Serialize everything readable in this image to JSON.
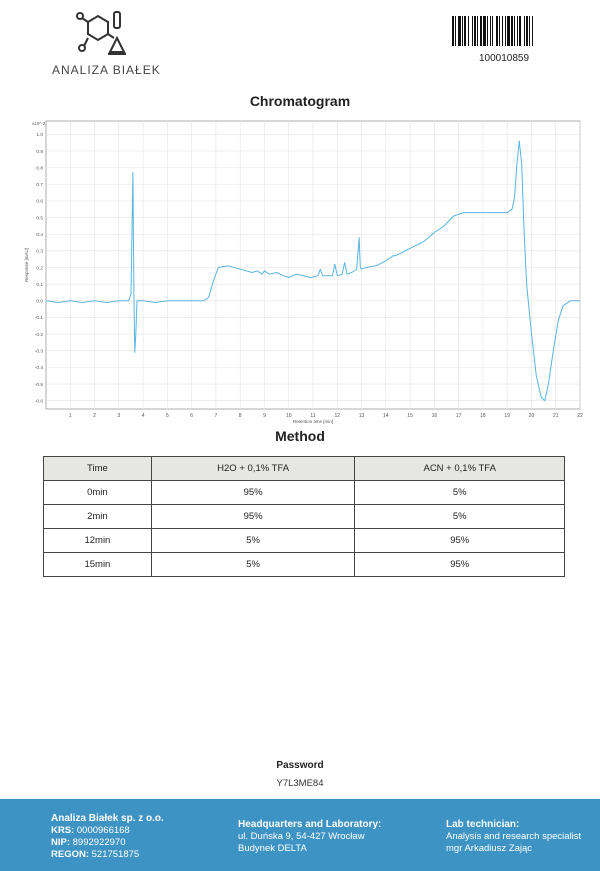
{
  "header": {
    "logo_text": "ANALIZA BIAŁEK",
    "barcode_number": "100010859"
  },
  "chromatogram": {
    "title": "Chromatogram"
  },
  "chart_data": {
    "type": "line",
    "y_scale_note": "x10^-2",
    "xlabel": "Retention time [min]",
    "ylabel": "Response [mAU]",
    "xlim": [
      0,
      22
    ],
    "ylim": [
      -0.65,
      1.08
    ],
    "x_ticks": [
      1,
      2,
      3,
      4,
      5,
      6,
      7,
      8,
      9,
      10,
      11,
      12,
      13,
      14,
      15,
      16,
      17,
      18,
      19,
      20,
      21,
      22
    ],
    "y_ticks": [
      -0.6,
      -0.5,
      -0.4,
      -0.3,
      -0.2,
      -0.1,
      0,
      0.1,
      0.2,
      0.3,
      0.4,
      0.5,
      0.6,
      0.7,
      0.8,
      0.9,
      1.0
    ],
    "grid": true,
    "series": [
      {
        "color": "#5ab4e0",
        "x": [
          0,
          0.5,
          1,
          1.5,
          2,
          2.5,
          3,
          3.4,
          3.5,
          3.58,
          3.62,
          3.66,
          3.7,
          3.75,
          3.8,
          4,
          4.5,
          5,
          5.5,
          6,
          6.5,
          6.7,
          6.9,
          7.1,
          7.5,
          8,
          8.5,
          8.7,
          8.9,
          9,
          9.2,
          9.5,
          9.8,
          10,
          10.3,
          10.6,
          10.9,
          11.2,
          11.3,
          11.4,
          11.6,
          11.8,
          11.9,
          12.0,
          12.2,
          12.3,
          12.4,
          12.6,
          12.8,
          12.9,
          12.95,
          13.0,
          13.2,
          13.6,
          14.0,
          14.2,
          14.3,
          14.4,
          14.8,
          15.2,
          15.6,
          16.0,
          16.4,
          16.8,
          17.2,
          17.6,
          18,
          18.5,
          19.0,
          19.2,
          19.3,
          19.4,
          19.5,
          19.6,
          19.7,
          19.8,
          20.0,
          20.2,
          20.4,
          20.55,
          20.7,
          20.9,
          21.1,
          21.3,
          21.6,
          22
        ],
        "y": [
          0.0,
          -0.01,
          0.0,
          -0.01,
          0.0,
          -0.01,
          0.0,
          0.0,
          0.04,
          0.77,
          0.04,
          -0.31,
          -0.2,
          0.0,
          0.0,
          0.0,
          -0.01,
          0.0,
          0.0,
          0.0,
          0.0,
          0.02,
          0.12,
          0.2,
          0.21,
          0.19,
          0.17,
          0.18,
          0.16,
          0.18,
          0.16,
          0.17,
          0.15,
          0.14,
          0.16,
          0.15,
          0.14,
          0.15,
          0.19,
          0.15,
          0.15,
          0.15,
          0.22,
          0.15,
          0.16,
          0.23,
          0.16,
          0.17,
          0.19,
          0.38,
          0.2,
          0.19,
          0.2,
          0.21,
          0.24,
          0.26,
          0.27,
          0.27,
          0.3,
          0.33,
          0.36,
          0.41,
          0.45,
          0.51,
          0.53,
          0.53,
          0.53,
          0.53,
          0.53,
          0.55,
          0.62,
          0.82,
          0.96,
          0.82,
          0.4,
          0.1,
          -0.2,
          -0.45,
          -0.58,
          -0.6,
          -0.5,
          -0.3,
          -0.12,
          -0.03,
          0.0,
          0.0
        ]
      }
    ]
  },
  "method": {
    "title": "Method",
    "headers": [
      "Time",
      "H2O + 0,1% TFA",
      "ACN + 0,1% TFA"
    ],
    "rows": [
      [
        "0min",
        "95%",
        "5%"
      ],
      [
        "2min",
        "95%",
        "5%"
      ],
      [
        "12min",
        "5%",
        "95%"
      ],
      [
        "15min",
        "5%",
        "95%"
      ]
    ]
  },
  "password": {
    "label": "Password",
    "value": "Y7L3ME84"
  },
  "footer": {
    "company": {
      "name": "Analiza Białek sp. z o.o.",
      "krs_label": "KRS:",
      "krs": "0000966168",
      "nip_label": "NIP:",
      "nip": "8992922970",
      "regon_label": "REGON:",
      "regon": "521751875"
    },
    "hq": {
      "title": "Headquarters and Laboratory:",
      "line1": "ul. Duńska 9, 54-427 Wrocław",
      "line2": "Budynek DELTA"
    },
    "tech": {
      "title": "Lab technician:",
      "line1": "Analysis and research specialist",
      "line2": "mgr Arkadiusz Zając"
    }
  }
}
